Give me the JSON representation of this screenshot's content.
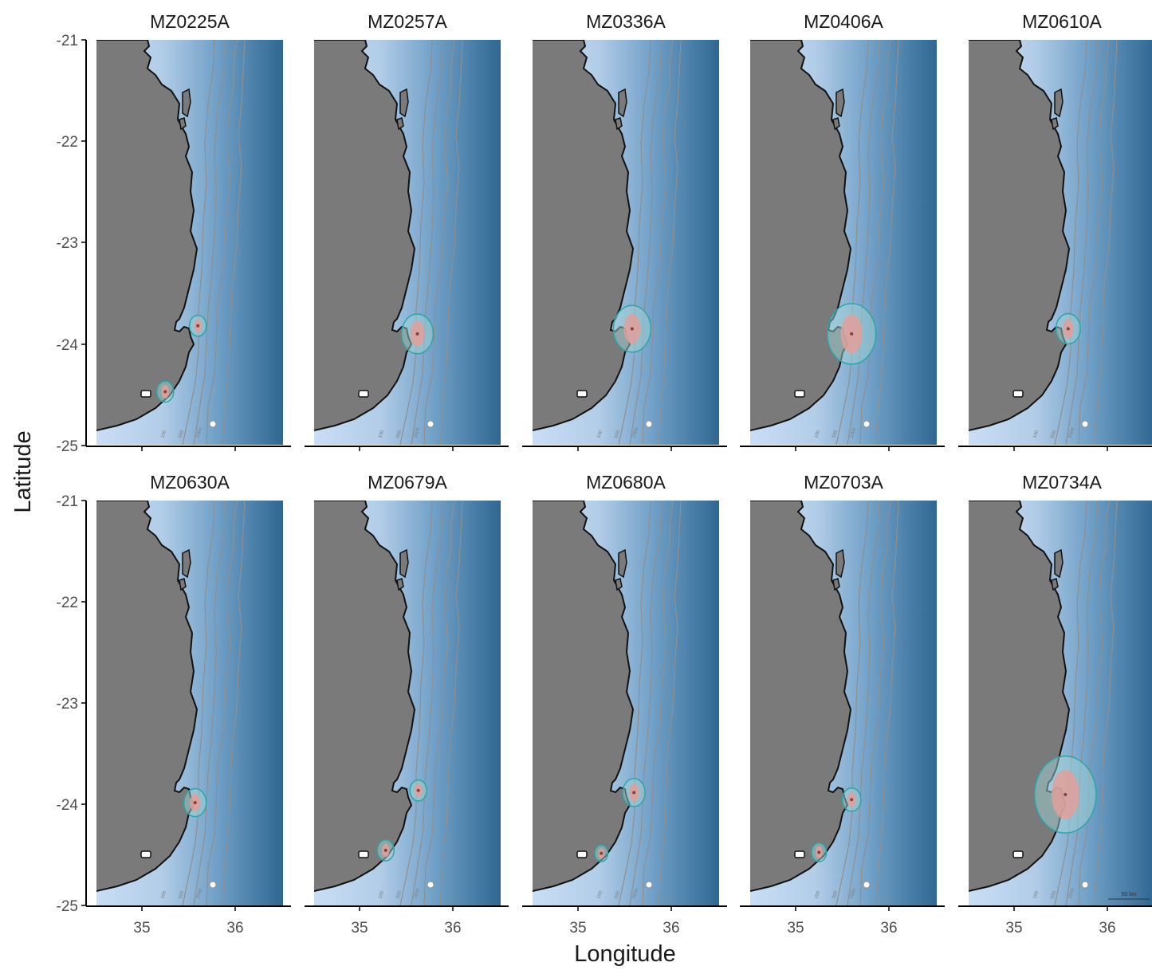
{
  "x_axis_title": "Longitude",
  "y_axis_title": "Latitude",
  "y_ticks": [
    "-21",
    "-22",
    "-23",
    "-24",
    "-25"
  ],
  "x_ticks": [
    "35",
    "36"
  ],
  "contour_labels": [
    "100",
    "500",
    "1000"
  ],
  "scale_bar_label": "50 km",
  "colors": {
    "land": "#7a7a7a",
    "water_light": "#c5dcf5",
    "water_deep": "#2f6792",
    "home_range_outline": "#2aa6a8",
    "home_range_fill": "#9fd3d6",
    "core_area": "#e2a09a",
    "points": "#8a3d3a",
    "contours": "#8f8f8f"
  },
  "panels": [
    {
      "id": "MZ0225A",
      "clusters": [
        [
          35.6,
          -23.82,
          0.09
        ],
        [
          35.25,
          -24.47,
          0.09
        ]
      ]
    },
    {
      "id": "MZ0257A",
      "clusters": [
        [
          35.62,
          -23.9,
          0.17
        ]
      ]
    },
    {
      "id": "MZ0336A",
      "clusters": [
        [
          35.58,
          -23.85,
          0.2
        ]
      ]
    },
    {
      "id": "MZ0406A",
      "clusters": [
        [
          35.6,
          -23.9,
          0.26
        ]
      ]
    },
    {
      "id": "MZ0610A",
      "clusters": [
        [
          35.58,
          -23.85,
          0.13
        ]
      ]
    },
    {
      "id": "MZ0630A",
      "clusters": [
        [
          35.57,
          -23.98,
          0.12
        ]
      ]
    },
    {
      "id": "MZ0679A",
      "clusters": [
        [
          35.63,
          -23.86,
          0.09
        ],
        [
          35.28,
          -24.45,
          0.09
        ]
      ]
    },
    {
      "id": "MZ0680A",
      "clusters": [
        [
          35.6,
          -23.88,
          0.12
        ],
        [
          35.25,
          -24.48,
          0.07
        ]
      ]
    },
    {
      "id": "MZ0703A",
      "clusters": [
        [
          35.6,
          -23.95,
          0.1
        ],
        [
          35.25,
          -24.47,
          0.08
        ]
      ]
    },
    {
      "id": "MZ0734A",
      "clusters": [
        [
          35.55,
          -23.9,
          0.33
        ]
      ]
    }
  ],
  "map_extent": {
    "lon_range": [
      34.5,
      36.5
    ],
    "lat_range": [
      -25,
      -21
    ]
  }
}
